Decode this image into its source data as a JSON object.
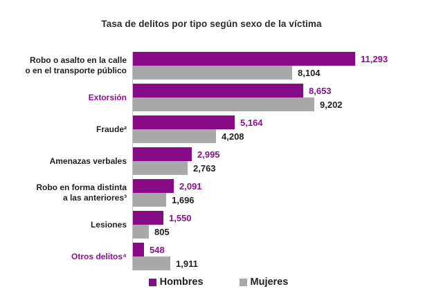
{
  "title": "Tasa de delitos por tipo según sexo de la víctima",
  "colors": {
    "hombres": "#870b87",
    "mujeres": "#a9a9a9",
    "highlight_text": "#8e0f8e",
    "text": "#1f1f1f",
    "axis": "#c4c4c4"
  },
  "legend": {
    "items": [
      {
        "label": "Hombres",
        "series_key": "hombres"
      },
      {
        "label": "Mujeres",
        "series_key": "mujeres"
      }
    ]
  },
  "chart_data": {
    "type": "bar",
    "orientation": "horizontal",
    "title": "Tasa de delitos por tipo según sexo de la víctima",
    "categories": [
      "Robo o asalto en la calle\no en el transporte público",
      "Extorsión",
      "Fraude²",
      "Amenazas verbales",
      "Robo en forma distinta\na las anteriores³",
      "Lesiones",
      "Otros delitos⁴"
    ],
    "highlighted_category_indices": [
      1,
      6
    ],
    "series": [
      {
        "name": "Hombres",
        "color": "#870b87",
        "values": [
          11293,
          8653,
          5164,
          2995,
          2091,
          1550,
          548
        ]
      },
      {
        "name": "Mujeres",
        "color": "#a9a9a9",
        "values": [
          8104,
          9202,
          4208,
          2763,
          1696,
          805,
          1911
        ]
      }
    ],
    "value_labels": {
      "hombres": [
        "11,293",
        "8,653",
        "5,164",
        "2,995",
        "2,091",
        "1,550",
        "548"
      ],
      "mujeres": [
        "8,104",
        "9,202",
        "4,208",
        "2,763",
        "1,696",
        "805",
        "1,911"
      ]
    },
    "xlim": [
      0,
      11600
    ],
    "grid": false,
    "data_labels_shown": true,
    "legend_position": "bottom"
  }
}
